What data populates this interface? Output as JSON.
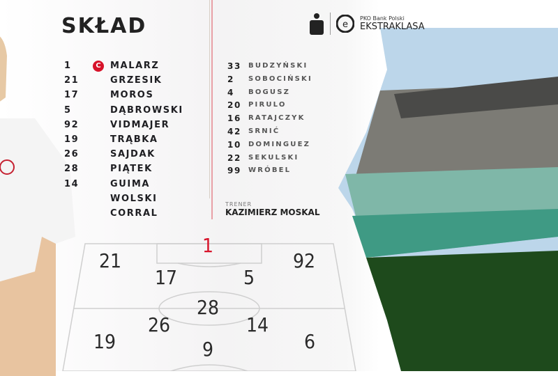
{
  "title": "SKŁAD",
  "captain_badge": "C",
  "starters": [
    {
      "number": "1",
      "name": "MALARZ",
      "captain": true
    },
    {
      "number": "21",
      "name": "GRZESIK"
    },
    {
      "number": "17",
      "name": "MOROS"
    },
    {
      "number": "5",
      "name": "DĄBROWSKI"
    },
    {
      "number": "92",
      "name": "VIDMAJER"
    },
    {
      "number": "19",
      "name": "TRĄBKA"
    },
    {
      "number": "26",
      "name": "SAJDAK"
    },
    {
      "number": "28",
      "name": "PIĄTEK"
    },
    {
      "number": "14",
      "name": "GUIMA"
    },
    {
      "number": "",
      "name": "WOLSKI"
    },
    {
      "number": "",
      "name": "CORRAL"
    }
  ],
  "substitutes": [
    {
      "number": "33",
      "name": "BUDZYŃSKI"
    },
    {
      "number": "2",
      "name": "SOBOCIŃSKI"
    },
    {
      "number": "4",
      "name": "BOGUSZ"
    },
    {
      "number": "20",
      "name": "PIRULO"
    },
    {
      "number": "16",
      "name": "RATAJCZYK"
    },
    {
      "number": "42",
      "name": "SRNIĆ"
    },
    {
      "number": "10",
      "name": "DOMINGUEZ"
    },
    {
      "number": "22",
      "name": "SEKULSKI"
    },
    {
      "number": "99",
      "name": "WRÓBEL"
    }
  ],
  "coach": {
    "label": "TRENER",
    "name": "KAZIMIERZ MOSKAL"
  },
  "league": {
    "sponsor": "PKO Bank Polski",
    "name": "EKSTRAKLASA",
    "icon": "pko-logo"
  },
  "formation": [
    "1",
    "21",
    "17",
    "5",
    "92",
    "28",
    "26",
    "14",
    "19",
    "9",
    "6"
  ],
  "colors": {
    "accent": "#d7132a",
    "text": "#222222"
  }
}
